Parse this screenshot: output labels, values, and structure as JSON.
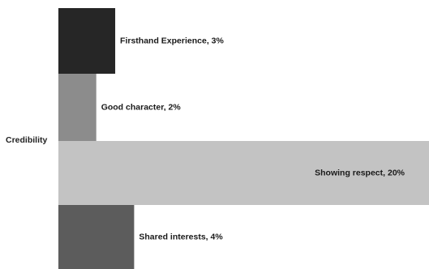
{
  "chart_data": {
    "type": "bar",
    "orientation": "horizontal",
    "category": "Credibility",
    "categories": [
      "Firsthand Experience",
      "Good character",
      "Showing respect",
      "Shared interests"
    ],
    "values": [
      3,
      2,
      20,
      4
    ],
    "unit": "%",
    "data_labels": [
      "Firsthand Experience, 3%",
      "Good character, 2%",
      "Showing respect, 20%",
      "Shared interests, 4%"
    ],
    "colors": [
      "#262626",
      "#8c8c8c",
      "#c3c3c3",
      "#5c5c5c"
    ],
    "grid": false,
    "legend": "none"
  }
}
